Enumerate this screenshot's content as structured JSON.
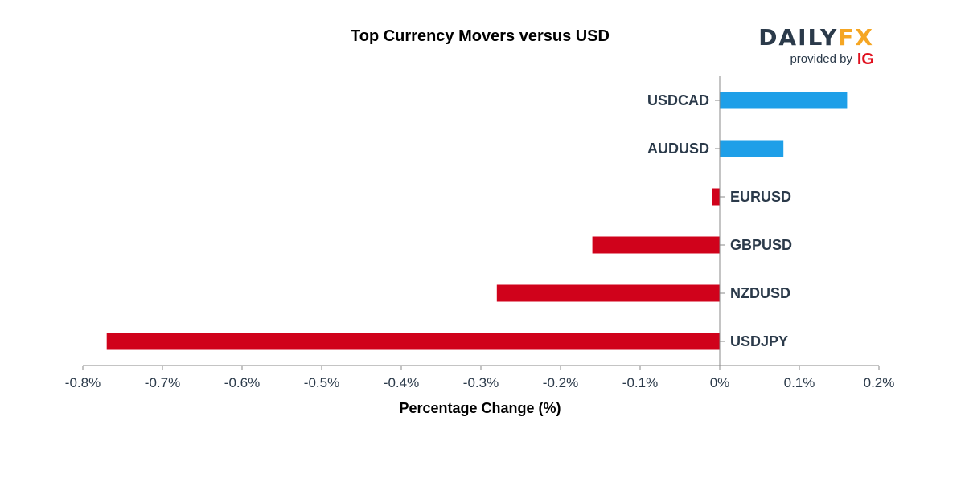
{
  "chart_data": {
    "type": "bar",
    "orientation": "horizontal",
    "title": "Top Currency Movers versus USD",
    "xlabel": "Percentage Change (%)",
    "ylabel": "",
    "categories": [
      "USDCAD",
      "AUDUSD",
      "EURUSD",
      "GBPUSD",
      "NZDUSD",
      "USDJPY"
    ],
    "values": [
      0.16,
      0.08,
      -0.01,
      -0.16,
      -0.28,
      -0.77
    ],
    "xlim": [
      -0.8,
      0.2
    ],
    "x_ticks": [
      -0.8,
      -0.7,
      -0.6,
      -0.5,
      -0.4,
      -0.3,
      -0.2,
      -0.1,
      0,
      0.1,
      0.2
    ],
    "x_tick_labels": [
      "-0.8%",
      "-0.7%",
      "-0.6%",
      "-0.5%",
      "-0.4%",
      "-0.3%",
      "-0.2%",
      "-0.1%",
      "0%",
      "0.1%",
      "0.2%"
    ],
    "positive_color": "#1e9fe8",
    "negative_color": "#d0021b",
    "grid": false
  },
  "branding": {
    "logo_left": "DAILY",
    "logo_right": "FX",
    "provided_by": "provided by",
    "ig": "IG",
    "logo_dark_color": "#2b3a4a",
    "logo_accent_color": "#f5a623",
    "ig_color": "#e0101e"
  },
  "colors": {
    "axis": "#888888",
    "text": "#2b3a4a"
  }
}
